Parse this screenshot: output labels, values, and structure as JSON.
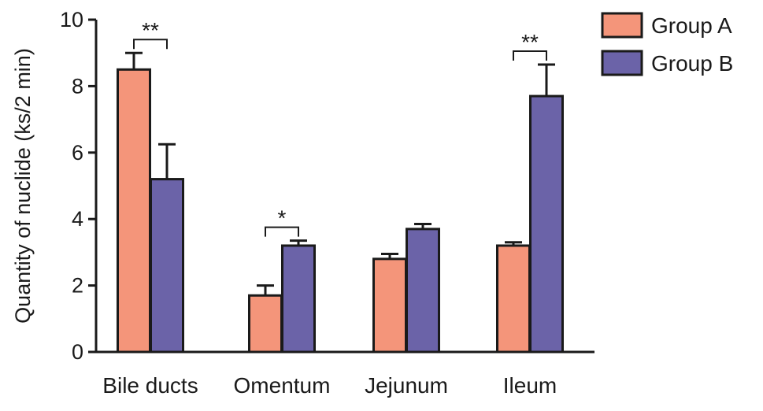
{
  "chart_data": {
    "type": "bar",
    "categories": [
      "Bile ducts",
      "Omentum",
      "Jejunum",
      "Ileum"
    ],
    "series": [
      {
        "name": "Group A",
        "color": "#f4957a",
        "values": [
          8.5,
          1.7,
          2.8,
          3.2
        ],
        "errors": [
          0.5,
          0.3,
          0.15,
          0.1
        ]
      },
      {
        "name": "Group B",
        "color": "#6b63a8",
        "values": [
          5.2,
          3.2,
          3.7,
          7.7
        ],
        "errors": [
          1.05,
          0.15,
          0.15,
          0.95
        ]
      }
    ],
    "title": "",
    "xlabel": "",
    "ylabel": "Quantity of nuclide (ks/2 min)",
    "ylim": [
      0,
      10
    ],
    "yticks": [
      "0",
      "2",
      "4",
      "6",
      "8",
      "10"
    ],
    "grid": false,
    "legend_position": "top-right",
    "significance": [
      {
        "category": "Bile ducts",
        "label": "**"
      },
      {
        "category": "Omentum",
        "label": "*"
      },
      {
        "category": "Ileum",
        "label": "**"
      }
    ]
  }
}
